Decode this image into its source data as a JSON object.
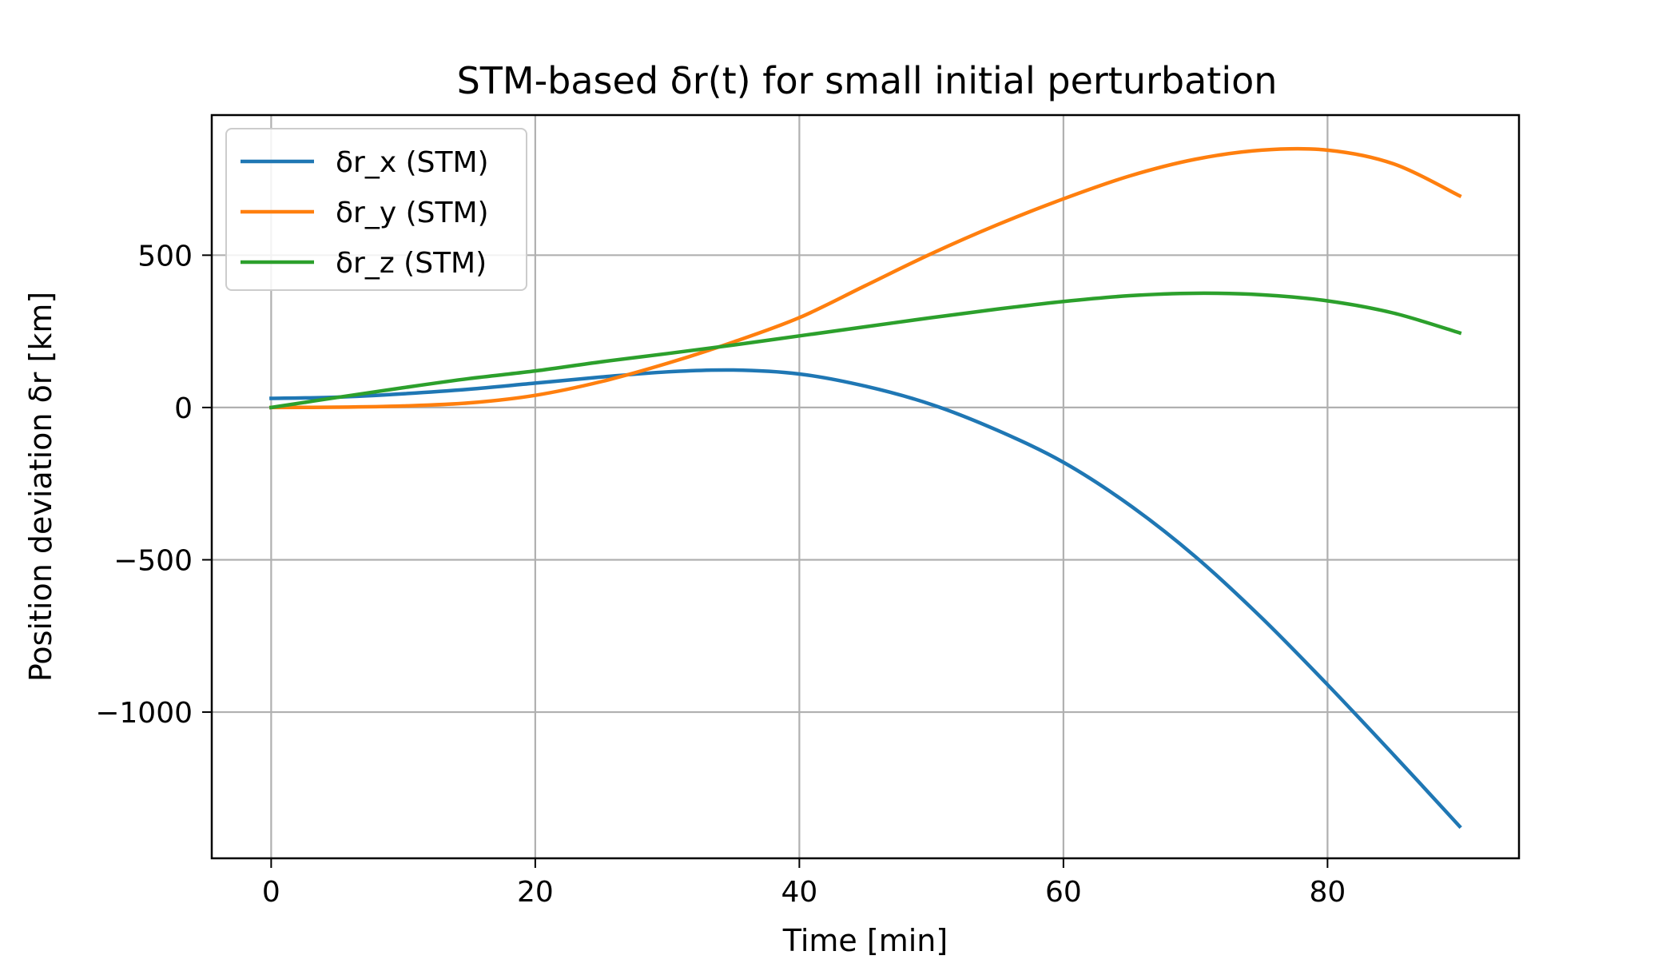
{
  "chart_data": {
    "type": "line",
    "title": "STM-based δr(t) for small initial perturbation",
    "xlabel": "Time [min]",
    "ylabel": "Position deviation δr [km]",
    "xlim": [
      -4.5,
      94.5
    ],
    "ylim": [
      -1480,
      960
    ],
    "xticks": [
      0,
      20,
      40,
      60,
      80
    ],
    "xtick_labels": [
      "0",
      "20",
      "40",
      "60",
      "80"
    ],
    "yticks": [
      -1000,
      -500,
      0,
      500
    ],
    "ytick_labels": [
      "−1000",
      "−500",
      "0",
      "500"
    ],
    "grid": true,
    "legend_position": "upper-left",
    "x": [
      0,
      5,
      10,
      15,
      20,
      25,
      30,
      35,
      40,
      45,
      50,
      55,
      60,
      65,
      70,
      75,
      80,
      85,
      90
    ],
    "series": [
      {
        "name": "δr_x (STM)",
        "color": "#1f77b4",
        "values": [
          30,
          34,
          45,
          60,
          80,
          100,
          117,
          123,
          110,
          70,
          10,
          -75,
          -180,
          -320,
          -490,
          -690,
          -910,
          -1140,
          -1375
        ]
      },
      {
        "name": "δr_y (STM)",
        "color": "#ff7f0e",
        "values": [
          0,
          1,
          5,
          15,
          40,
          85,
          145,
          215,
          295,
          400,
          505,
          600,
          685,
          760,
          815,
          845,
          845,
          800,
          695
        ]
      },
      {
        "name": "δr_z (STM)",
        "color": "#2ca02c",
        "values": [
          0,
          33,
          65,
          95,
          120,
          150,
          177,
          205,
          235,
          265,
          295,
          323,
          348,
          367,
          375,
          370,
          350,
          310,
          245
        ]
      }
    ]
  }
}
